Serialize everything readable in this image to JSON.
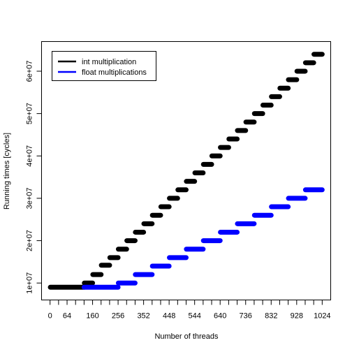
{
  "chart_data": {
    "type": "scatter",
    "xlabel": "Number of threads",
    "ylabel": "Running times [cycles]",
    "xlim": [
      -32,
      1056
    ],
    "ylim": [
      6000000,
      67000000
    ],
    "x_ticks": [
      0,
      32,
      64,
      96,
      128,
      160,
      192,
      224,
      256,
      288,
      320,
      352,
      384,
      416,
      448,
      480,
      512,
      544,
      576,
      608,
      640,
      672,
      704,
      736,
      768,
      800,
      832,
      864,
      896,
      928,
      960,
      992,
      1024
    ],
    "x_tick_labels": [
      "0",
      "",
      "64",
      "",
      "",
      "160",
      "",
      "",
      "256",
      "",
      "",
      "352",
      "",
      "",
      "448",
      "",
      "",
      "544",
      "",
      "",
      "640",
      "",
      "",
      "736",
      "",
      "",
      "832",
      "",
      "",
      "928",
      "",
      "",
      "1024"
    ],
    "y_ticks": [
      10000000,
      20000000,
      30000000,
      40000000,
      50000000,
      60000000
    ],
    "y_tick_labels": [
      "1e+07",
      "2e+07",
      "3e+07",
      "4e+07",
      "5e+07",
      "6e+07"
    ],
    "legend": {
      "position": "top-left"
    },
    "series": [
      {
        "name": "int multiplication",
        "color": "#000000",
        "segments": [
          {
            "x_start": 1,
            "x_end": 128,
            "y": 9000000
          },
          {
            "x_start": 129,
            "x_end": 160,
            "y": 10000000
          },
          {
            "x_start": 161,
            "x_end": 192,
            "y": 12000000
          },
          {
            "x_start": 193,
            "x_end": 224,
            "y": 14200000
          },
          {
            "x_start": 225,
            "x_end": 256,
            "y": 16000000
          },
          {
            "x_start": 257,
            "x_end": 288,
            "y": 18000000
          },
          {
            "x_start": 289,
            "x_end": 320,
            "y": 20000000
          },
          {
            "x_start": 321,
            "x_end": 352,
            "y": 22000000
          },
          {
            "x_start": 353,
            "x_end": 384,
            "y": 24000000
          },
          {
            "x_start": 385,
            "x_end": 416,
            "y": 26000000
          },
          {
            "x_start": 417,
            "x_end": 448,
            "y": 28000000
          },
          {
            "x_start": 449,
            "x_end": 480,
            "y": 30000000
          },
          {
            "x_start": 481,
            "x_end": 512,
            "y": 32000000
          },
          {
            "x_start": 513,
            "x_end": 544,
            "y": 34000000
          },
          {
            "x_start": 545,
            "x_end": 576,
            "y": 36000000
          },
          {
            "x_start": 577,
            "x_end": 608,
            "y": 38000000
          },
          {
            "x_start": 609,
            "x_end": 640,
            "y": 40000000
          },
          {
            "x_start": 641,
            "x_end": 672,
            "y": 42000000
          },
          {
            "x_start": 673,
            "x_end": 704,
            "y": 44000000
          },
          {
            "x_start": 705,
            "x_end": 736,
            "y": 46000000
          },
          {
            "x_start": 737,
            "x_end": 768,
            "y": 48000000
          },
          {
            "x_start": 769,
            "x_end": 800,
            "y": 50000000
          },
          {
            "x_start": 801,
            "x_end": 832,
            "y": 52000000
          },
          {
            "x_start": 833,
            "x_end": 864,
            "y": 54000000
          },
          {
            "x_start": 865,
            "x_end": 896,
            "y": 56000000
          },
          {
            "x_start": 897,
            "x_end": 928,
            "y": 58000000
          },
          {
            "x_start": 929,
            "x_end": 960,
            "y": 60000000
          },
          {
            "x_start": 961,
            "x_end": 992,
            "y": 62000000
          },
          {
            "x_start": 993,
            "x_end": 1024,
            "y": 64000000
          }
        ]
      },
      {
        "name": "float multiplications",
        "color": "#0000ff",
        "segments": [
          {
            "x_start": 128,
            "x_end": 256,
            "y": 9000000
          },
          {
            "x_start": 257,
            "x_end": 320,
            "y": 10000000
          },
          {
            "x_start": 321,
            "x_end": 384,
            "y": 12000000
          },
          {
            "x_start": 385,
            "x_end": 448,
            "y": 14000000
          },
          {
            "x_start": 449,
            "x_end": 512,
            "y": 16000000
          },
          {
            "x_start": 513,
            "x_end": 576,
            "y": 18000000
          },
          {
            "x_start": 577,
            "x_end": 640,
            "y": 20000000
          },
          {
            "x_start": 641,
            "x_end": 704,
            "y": 22000000
          },
          {
            "x_start": 705,
            "x_end": 768,
            "y": 24000000
          },
          {
            "x_start": 769,
            "x_end": 832,
            "y": 26000000
          },
          {
            "x_start": 833,
            "x_end": 896,
            "y": 28000000
          },
          {
            "x_start": 897,
            "x_end": 960,
            "y": 30000000
          },
          {
            "x_start": 961,
            "x_end": 1024,
            "y": 32000000
          }
        ]
      }
    ]
  }
}
